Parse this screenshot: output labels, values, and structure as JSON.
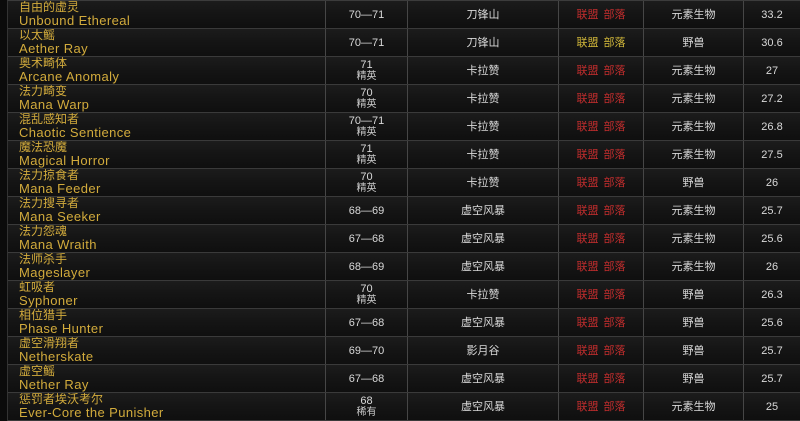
{
  "colors": {
    "name_gold": "#d2ab3c",
    "hostile_red": "#c22d2d",
    "neutral_yellow": "#d2b83a",
    "text_light": "#d9d9d9"
  },
  "reaction_labels": {
    "alliance": "联盟",
    "horde": "部落"
  },
  "table": {
    "rows": [
      {
        "name_cn": "自由的虚灵",
        "name_en": "Unbound Ethereal",
        "level": "70—71",
        "tag": "",
        "zone": "刀锋山",
        "reaction": "hostile",
        "type": "元素生物",
        "score": "33.2"
      },
      {
        "name_cn": "以太鳐",
        "name_en": "Aether Ray",
        "level": "70—71",
        "tag": "",
        "zone": "刀锋山",
        "reaction": "neutral",
        "type": "野兽",
        "score": "30.6"
      },
      {
        "name_cn": "奥术畸体",
        "name_en": "Arcane Anomaly",
        "level": "71",
        "tag": "精英",
        "zone": "卡拉赞",
        "reaction": "hostile",
        "type": "元素生物",
        "score": "27"
      },
      {
        "name_cn": "法力畸变",
        "name_en": "Mana Warp",
        "level": "70",
        "tag": "精英",
        "zone": "卡拉赞",
        "reaction": "hostile",
        "type": "元素生物",
        "score": "27.2"
      },
      {
        "name_cn": "混乱感知者",
        "name_en": "Chaotic Sentience",
        "level": "70—71",
        "tag": "精英",
        "zone": "卡拉赞",
        "reaction": "hostile",
        "type": "元素生物",
        "score": "26.8"
      },
      {
        "name_cn": "魔法恐魔",
        "name_en": "Magical Horror",
        "level": "71",
        "tag": "精英",
        "zone": "卡拉赞",
        "reaction": "hostile",
        "type": "元素生物",
        "score": "27.5"
      },
      {
        "name_cn": "法力掠食者",
        "name_en": "Mana Feeder",
        "level": "70",
        "tag": "精英",
        "zone": "卡拉赞",
        "reaction": "hostile",
        "type": "野兽",
        "score": "26"
      },
      {
        "name_cn": "法力搜寻者",
        "name_en": "Mana Seeker",
        "level": "68—69",
        "tag": "",
        "zone": "虚空风暴",
        "reaction": "hostile",
        "type": "元素生物",
        "score": "25.7"
      },
      {
        "name_cn": "法力怨魂",
        "name_en": "Mana Wraith",
        "level": "67—68",
        "tag": "",
        "zone": "虚空风暴",
        "reaction": "hostile",
        "type": "元素生物",
        "score": "25.6"
      },
      {
        "name_cn": "法师杀手",
        "name_en": "Mageslayer",
        "level": "68—69",
        "tag": "",
        "zone": "虚空风暴",
        "reaction": "hostile",
        "type": "元素生物",
        "score": "26"
      },
      {
        "name_cn": "虹吸者",
        "name_en": "Syphoner",
        "level": "70",
        "tag": "精英",
        "zone": "卡拉赞",
        "reaction": "hostile",
        "type": "野兽",
        "score": "26.3"
      },
      {
        "name_cn": "相位猎手",
        "name_en": "Phase Hunter",
        "level": "67—68",
        "tag": "",
        "zone": "虚空风暴",
        "reaction": "hostile",
        "type": "野兽",
        "score": "25.6"
      },
      {
        "name_cn": "虚空滑翔者",
        "name_en": "Netherskate",
        "level": "69—70",
        "tag": "",
        "zone": "影月谷",
        "reaction": "hostile",
        "type": "野兽",
        "score": "25.7"
      },
      {
        "name_cn": "虚空鳐",
        "name_en": "Nether Ray",
        "level": "67—68",
        "tag": "",
        "zone": "虚空风暴",
        "reaction": "hostile",
        "type": "野兽",
        "score": "25.7"
      },
      {
        "name_cn": "惩罚者埃沃考尔",
        "name_en": "Ever-Core the Punisher",
        "level": "68",
        "tag": "稀有",
        "zone": "虚空风暴",
        "reaction": "hostile",
        "type": "元素生物",
        "score": "25"
      }
    ]
  }
}
